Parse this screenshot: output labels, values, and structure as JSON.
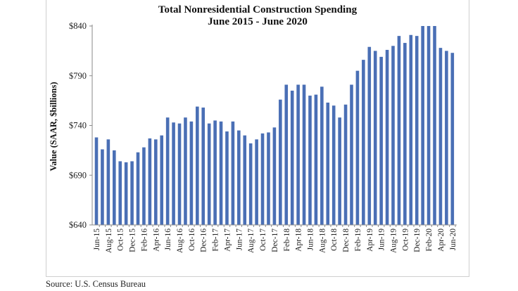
{
  "chart_data": {
    "type": "bar",
    "title": "Total Nonresidential Construction Spending",
    "subtitle": "June 2015 - June 2020",
    "xlabel": "",
    "ylabel": "Value (SAAR, $billions)",
    "ylim": [
      640,
      840
    ],
    "yticks": [
      "$640",
      "$690",
      "$740",
      "$790",
      "$840"
    ],
    "ytick_values": [
      640,
      690,
      740,
      790,
      840
    ],
    "grid": false,
    "legend": "none",
    "bar_color": "#4a6fb5",
    "categories": [
      "Jun-15",
      "Jul-15",
      "Aug-15",
      "Sep-15",
      "Oct-15",
      "Nov-15",
      "Dec-15",
      "Jan-16",
      "Feb-16",
      "Mar-16",
      "Apr-16",
      "May-16",
      "Jun-16",
      "Jul-16",
      "Aug-16",
      "Sep-16",
      "Oct-16",
      "Nov-16",
      "Dec-16",
      "Jan-17",
      "Feb-17",
      "Mar-17",
      "Apr-17",
      "May-17",
      "Jun-17",
      "Jul-17",
      "Aug-17",
      "Sep-17",
      "Oct-17",
      "Nov-17",
      "Dec-17",
      "Jan-18",
      "Feb-18",
      "Mar-18",
      "Apr-18",
      "May-18",
      "Jun-18",
      "Jul-18",
      "Aug-18",
      "Sep-18",
      "Oct-18",
      "Nov-18",
      "Dec-18",
      "Jan-19",
      "Feb-19",
      "Mar-19",
      "Apr-19",
      "May-19",
      "Jun-19",
      "Jul-19",
      "Aug-19",
      "Sep-19",
      "Oct-19",
      "Nov-19",
      "Dec-19",
      "Jan-20",
      "Feb-20",
      "Mar-20",
      "Apr-20",
      "May-20",
      "Jun-20"
    ],
    "tick_labels": [
      "Jun-15",
      "Aug-15",
      "Oct-15",
      "Dec-15",
      "Feb-16",
      "Apr-16",
      "Jun-16",
      "Aug-16",
      "Oct-16",
      "Dec-16",
      "Feb-17",
      "Apr-17",
      "Jun-17",
      "Aug-17",
      "Oct-17",
      "Dec-17",
      "Feb-18",
      "Apr-18",
      "Jun-18",
      "Aug-18",
      "Oct-18",
      "Dec-18",
      "Feb-19",
      "Apr-19",
      "Jun-19",
      "Aug-19",
      "Oct-19",
      "Dec-19",
      "Feb-20",
      "Apr-20",
      "Jun-20"
    ],
    "values": [
      728,
      716,
      726,
      715,
      704,
      703,
      704,
      713,
      718,
      727,
      726,
      730,
      748,
      743,
      742,
      748,
      744,
      759,
      758,
      742,
      745,
      744,
      734,
      744,
      735,
      730,
      722,
      726,
      732,
      733,
      738,
      766,
      781,
      775,
      781,
      781,
      770,
      771,
      779,
      763,
      760,
      748,
      761,
      781,
      795,
      806,
      819,
      815,
      809,
      816,
      820,
      830,
      823,
      831,
      830,
      840,
      840,
      840,
      818,
      815,
      813
    ]
  },
  "source": "Source:  U.S. Census Bureau"
}
